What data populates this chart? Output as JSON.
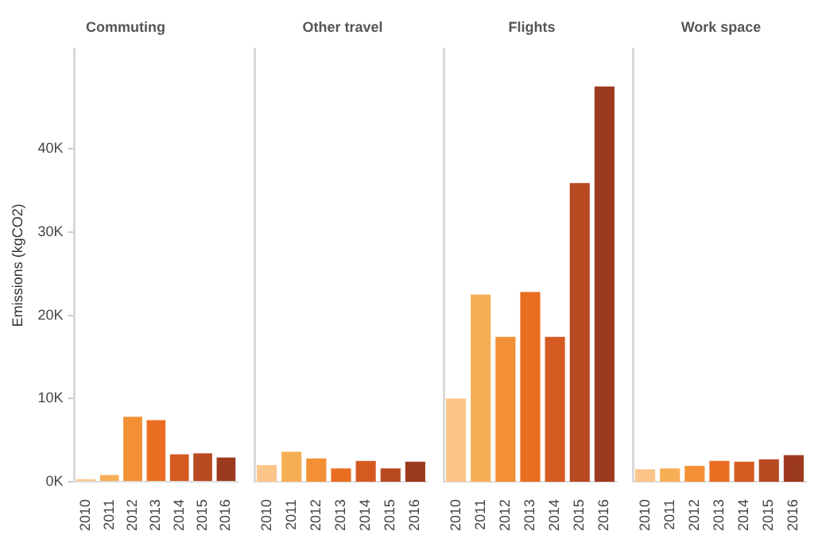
{
  "chart_data": [
    {
      "type": "bar",
      "title": "Commuting",
      "ylabel": "Emissions (kgCO2)",
      "categories": [
        "2010",
        "2011",
        "2012",
        "2013",
        "2014",
        "2015",
        "2016"
      ],
      "values": [
        300,
        800,
        7800,
        7400,
        3300,
        3400,
        2900
      ],
      "colors": [
        "#fdc58a",
        "#f6ae55",
        "#f38f35",
        "#ea6e22",
        "#d55a22",
        "#b84a22",
        "#9c3a20"
      ],
      "ylim": [
        0,
        52000
      ],
      "yticks": [
        {
          "value": 0,
          "label": "0K"
        },
        {
          "value": 10000,
          "label": "10K"
        },
        {
          "value": 20000,
          "label": "20K"
        },
        {
          "value": 30000,
          "label": "30K"
        },
        {
          "value": 40000,
          "label": "40K"
        }
      ]
    },
    {
      "type": "bar",
      "title": "Other travel",
      "categories": [
        "2010",
        "2011",
        "2012",
        "2013",
        "2014",
        "2015",
        "2016"
      ],
      "values": [
        2000,
        3600,
        2800,
        1600,
        2500,
        1600,
        2400
      ],
      "colors": [
        "#fdc58a",
        "#f6ae55",
        "#f38f35",
        "#ea6e22",
        "#d55a22",
        "#b84a22",
        "#9c3a20"
      ],
      "ylim": [
        0,
        52000
      ],
      "tick_labels": "x"
    },
    {
      "type": "bar",
      "title": "Flights",
      "categories": [
        "2010",
        "2011",
        "2012",
        "2013",
        "2014",
        "2015",
        "2016"
      ],
      "values": [
        10000,
        22500,
        17400,
        22800,
        17400,
        35900,
        47500
      ],
      "colors": [
        "#fdc58a",
        "#f6ae55",
        "#f38f35",
        "#ea6e22",
        "#d55a22",
        "#b84a22",
        "#9c3a20"
      ],
      "ylim": [
        0,
        52000
      ],
      "tick_labels": "x"
    },
    {
      "type": "bar",
      "title": "Work space",
      "categories": [
        "2010",
        "2011",
        "2012",
        "2013",
        "2014",
        "2015",
        "2016"
      ],
      "values": [
        1500,
        1600,
        1900,
        2500,
        2400,
        2700,
        3200
      ],
      "colors": [
        "#fdc58a",
        "#f6ae55",
        "#f38f35",
        "#ea6e22",
        "#d55a22",
        "#b84a22",
        "#9c3a20"
      ],
      "ylim": [
        0,
        52000
      ],
      "tick_labels": "x"
    }
  ]
}
